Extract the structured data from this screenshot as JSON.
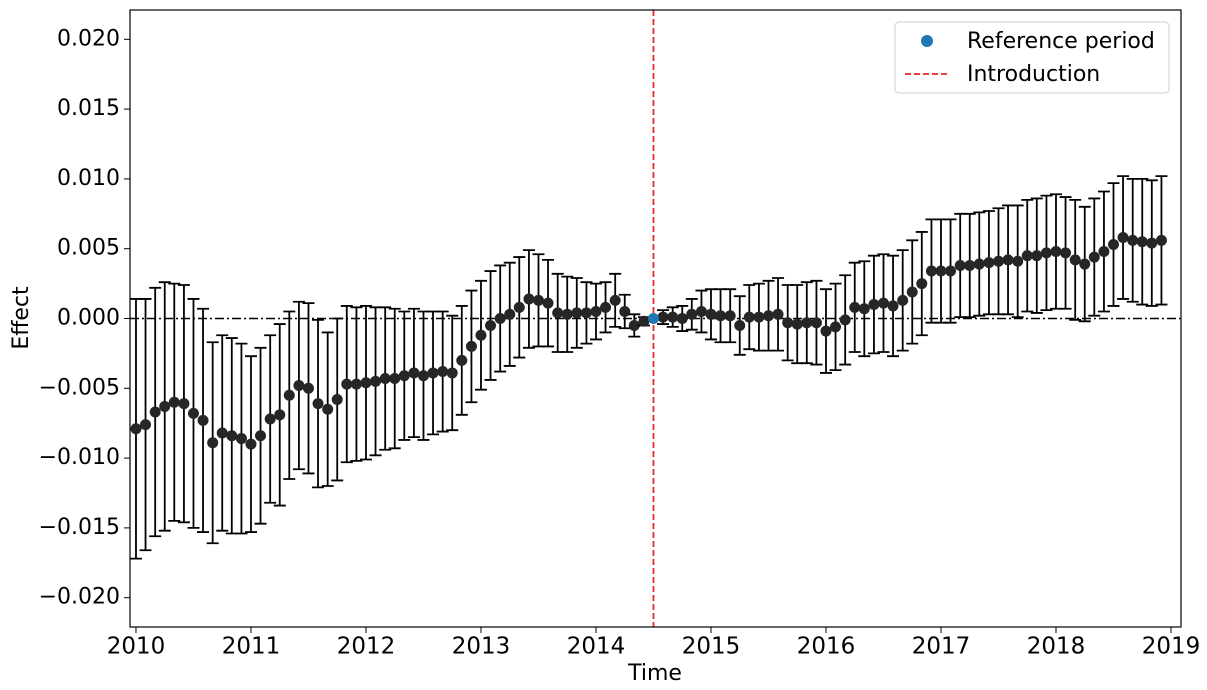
{
  "chart_data": {
    "type": "errorbar",
    "xlabel": "Time",
    "ylabel": "Effect",
    "xlim": [
      2009.948,
      2019.087
    ],
    "ylim": [
      -0.0221,
      0.0221
    ],
    "xticks": [
      2010,
      2011,
      2012,
      2013,
      2014,
      2015,
      2016,
      2017,
      2018,
      2019
    ],
    "yticks": [
      {
        "value": -0.02,
        "label": "−0.020"
      },
      {
        "value": -0.015,
        "label": "−0.015"
      },
      {
        "value": -0.01,
        "label": "−0.010"
      },
      {
        "value": -0.005,
        "label": "−0.005"
      },
      {
        "value": 0,
        "label": "0.000"
      },
      {
        "value": 0.005,
        "label": "0.005"
      },
      {
        "value": 0.01,
        "label": "0.010"
      },
      {
        "value": 0.015,
        "label": "0.015"
      },
      {
        "value": 0.02,
        "label": "0.020"
      }
    ],
    "reference_line": 0,
    "introduction": {
      "name": "Introduction",
      "x": 2014.5,
      "color": "#e8262a"
    },
    "legend": "upper right",
    "series": [
      {
        "color": "#262626",
        "x": [
          2010,
          2010.083,
          2010.167,
          2010.25,
          2010.333,
          2010.417,
          2010.5,
          2010.583,
          2010.667,
          2010.75,
          2010.833,
          2010.917,
          2011,
          2011.083,
          2011.167,
          2011.25,
          2011.333,
          2011.417,
          2011.5,
          2011.583,
          2011.667,
          2011.75,
          2011.833,
          2011.917,
          2012,
          2012.083,
          2012.167,
          2012.25,
          2012.333,
          2012.417,
          2012.5,
          2012.583,
          2012.667,
          2012.75,
          2012.833,
          2012.917,
          2013,
          2013.083,
          2013.167,
          2013.25,
          2013.333,
          2013.417,
          2013.5,
          2013.583,
          2013.667,
          2013.75,
          2013.833,
          2013.917,
          2014,
          2014.083,
          2014.167,
          2014.25,
          2014.333,
          2014.417,
          2014.5,
          2014.583,
          2014.667,
          2014.75,
          2014.833,
          2014.917,
          2015,
          2015.083,
          2015.167,
          2015.25,
          2015.333,
          2015.417,
          2015.5,
          2015.583,
          2015.667,
          2015.75,
          2015.833,
          2015.917,
          2016,
          2016.083,
          2016.167,
          2016.25,
          2016.333,
          2016.417,
          2016.5,
          2016.583,
          2016.667,
          2016.75,
          2016.833,
          2016.917,
          2017,
          2017.083,
          2017.167,
          2017.25,
          2017.333,
          2017.417,
          2017.5,
          2017.583,
          2017.667,
          2017.75,
          2017.833,
          2017.917,
          2018,
          2018.083,
          2018.167,
          2018.25,
          2018.333,
          2018.417,
          2018.5,
          2018.583,
          2018.667,
          2018.75,
          2018.833,
          2018.917
        ],
        "values": [
          -0.0079,
          -0.0076,
          -0.0067,
          -0.0063,
          -0.006,
          -0.0061,
          -0.0068,
          -0.0073,
          -0.0089,
          -0.0082,
          -0.0084,
          -0.0086,
          -0.009,
          -0.0084,
          -0.0072,
          -0.0069,
          -0.0055,
          -0.0048,
          -0.005,
          -0.0061,
          -0.0065,
          -0.0058,
          -0.0047,
          -0.0047,
          -0.0046,
          -0.0045,
          -0.0043,
          -0.0043,
          -0.0041,
          -0.0039,
          -0.0041,
          -0.0039,
          -0.0038,
          -0.0039,
          -0.003,
          -0.002,
          -0.0012,
          -0.0005,
          0,
          0.0003,
          0.0008,
          0.0014,
          0.0013,
          0.0011,
          0.0004,
          0.0003,
          0.0004,
          0.0004,
          0.0005,
          0.0008,
          0.0013,
          0.0005,
          -0.0005,
          -0.0002,
          null,
          0.0001,
          0.0001,
          0,
          0.0003,
          0.0005,
          0.0003,
          0.0002,
          0.0002,
          -0.0005,
          0.0001,
          0.0001,
          0.0002,
          0.0003,
          -0.0003,
          -0.0004,
          -0.0003,
          -0.0003,
          -0.0009,
          -0.0006,
          -0.0001,
          0.0008,
          0.0007,
          0.001,
          0.0011,
          0.0009,
          0.0013,
          0.0019,
          0.0025,
          0.0034,
          0.0034,
          0.0034,
          0.0038,
          0.0038,
          0.0039,
          0.004,
          0.0041,
          0.0042,
          0.0041,
          0.0045,
          0.0045,
          0.0047,
          0.0048,
          0.0047,
          0.0042,
          0.0039,
          0.0044,
          0.0048,
          0.0053,
          0.0058,
          0.0056,
          0.0055,
          0.0054,
          0.0056
        ],
        "errors": [
          0.0093,
          0.009,
          0.0089,
          0.0089,
          0.0085,
          0.0085,
          0.0082,
          0.008,
          0.0072,
          0.007,
          0.007,
          0.0068,
          0.0063,
          0.0063,
          0.006,
          0.0065,
          0.006,
          0.006,
          0.0061,
          0.006,
          0.0055,
          0.0058,
          0.0056,
          0.0055,
          0.0055,
          0.0053,
          0.0051,
          0.005,
          0.0046,
          0.0046,
          0.0046,
          0.0044,
          0.0043,
          0.0041,
          0.0039,
          0.004,
          0.0039,
          0.0039,
          0.0038,
          0.0037,
          0.0036,
          0.0035,
          0.0033,
          0.0031,
          0.0028,
          0.0027,
          0.0025,
          0.0022,
          0.002,
          0.0018,
          0.0019,
          0.0012,
          0.0008,
          0.0003,
          null,
          0.0005,
          0.0007,
          0.0009,
          0.0011,
          0.0015,
          0.0018,
          0.0019,
          0.0019,
          0.0021,
          0.0023,
          0.0024,
          0.0025,
          0.0026,
          0.0027,
          0.0028,
          0.0029,
          0.003,
          0.003,
          0.0031,
          0.0032,
          0.0032,
          0.0034,
          0.0035,
          0.0035,
          0.0036,
          0.0036,
          0.0037,
          0.0037,
          0.0037,
          0.0037,
          0.0037,
          0.0037,
          0.0037,
          0.0037,
          0.0037,
          0.0038,
          0.0039,
          0.004,
          0.004,
          0.0041,
          0.0041,
          0.0041,
          0.004,
          0.0043,
          0.0041,
          0.0042,
          0.0043,
          0.0044,
          0.0044,
          0.0044,
          0.0045,
          0.0045,
          0.0046
        ]
      },
      {
        "name": "Reference period",
        "color": "#1f77b4",
        "x": [
          2014.5
        ],
        "values": [
          0
        ]
      }
    ]
  }
}
